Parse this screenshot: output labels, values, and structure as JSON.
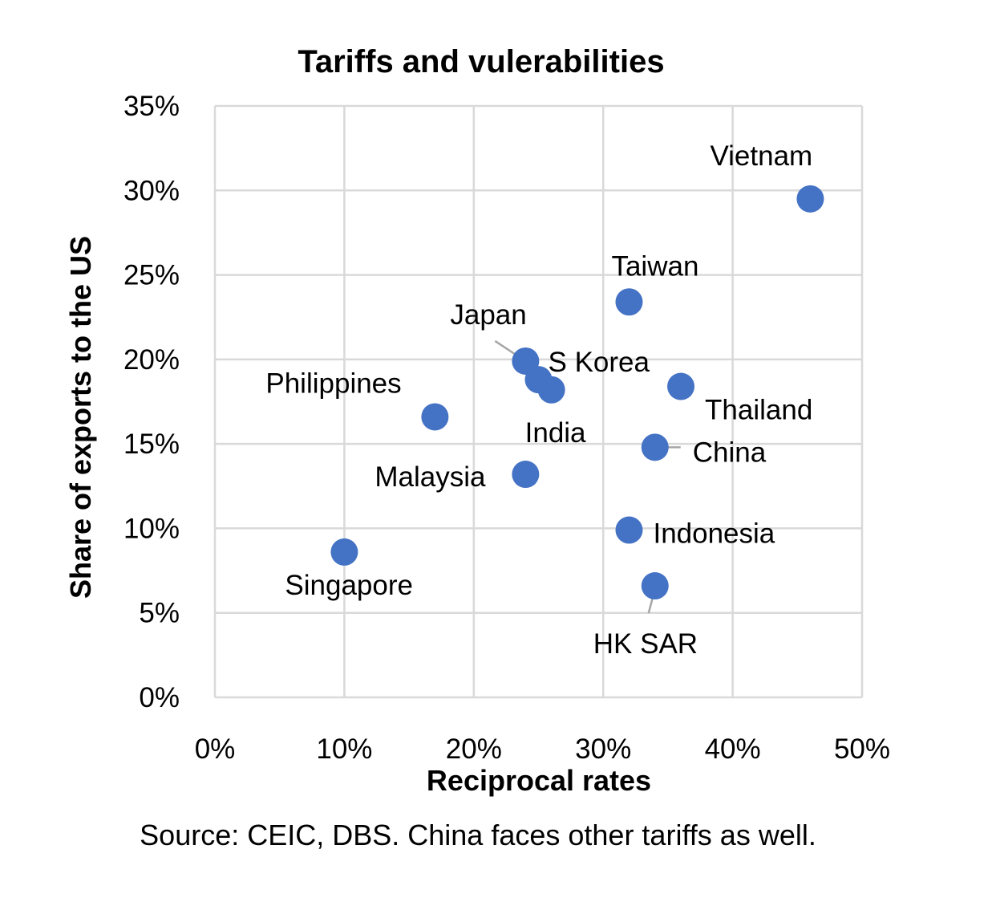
{
  "chart_data": {
    "type": "scatter",
    "title": "Tariffs and vulerabilities",
    "xlabel": "Reciprocal rates",
    "ylabel": "Share of exports to the US",
    "xlim": [
      0,
      50
    ],
    "ylim": [
      0,
      35
    ],
    "x_ticks": [
      "0%",
      "10%",
      "20%",
      "30%",
      "40%",
      "50%"
    ],
    "y_ticks": [
      "0%",
      "5%",
      "10%",
      "15%",
      "20%",
      "25%",
      "30%",
      "35%"
    ],
    "grid": true,
    "marker_color": "#4472C4",
    "points": [
      {
        "label": "Vietnam",
        "x": 46,
        "y": 29.5
      },
      {
        "label": "Taiwan",
        "x": 32,
        "y": 23.4
      },
      {
        "label": "Japan",
        "x": 24,
        "y": 19.9
      },
      {
        "label": "S Korea",
        "x": 25,
        "y": 18.8
      },
      {
        "label": "India",
        "x": 26,
        "y": 18.2
      },
      {
        "label": "Thailand",
        "x": 36,
        "y": 18.4
      },
      {
        "label": "Philippines",
        "x": 17,
        "y": 16.6
      },
      {
        "label": "China",
        "x": 34,
        "y": 14.8
      },
      {
        "label": "Malaysia",
        "x": 24,
        "y": 13.2
      },
      {
        "label": "Indonesia",
        "x": 32,
        "y": 9.9
      },
      {
        "label": "Singapore",
        "x": 10,
        "y": 8.6
      },
      {
        "label": "HK SAR",
        "x": 34,
        "y": 6.6
      }
    ]
  },
  "source": "Source: CEIC, DBS. China faces other tariffs as well."
}
